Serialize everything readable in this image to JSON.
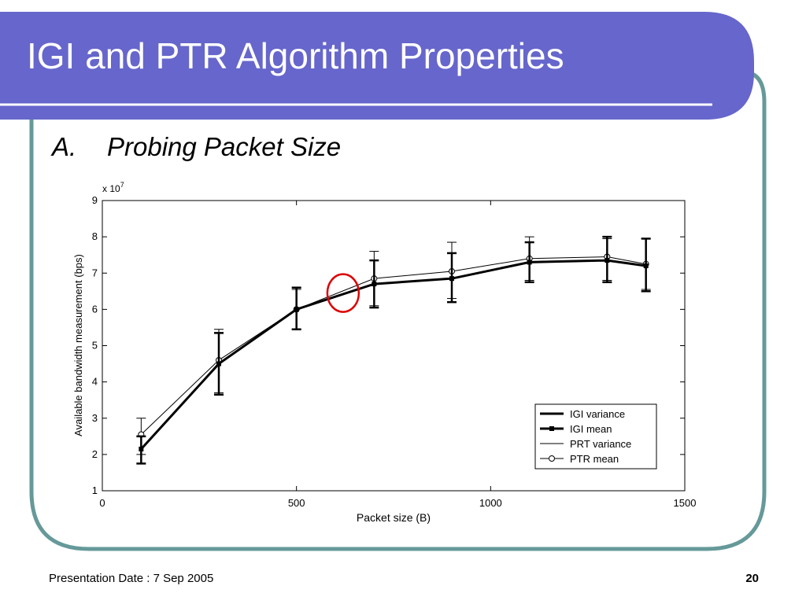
{
  "slide": {
    "title": "IGI and PTR Algorithm Properties",
    "subtitle_number": "A.",
    "subtitle_text": "Probing Packet Size",
    "footer_date": "Presentation Date : 7 Sep 2005",
    "page_number": "20",
    "colors": {
      "header": "#6666cc",
      "border": "#669999",
      "highlight_circle": "#dd0000"
    }
  },
  "chart_data": {
    "type": "line",
    "title": "",
    "xlabel": "Packet size (B)",
    "ylabel": "Available bandwidth measurement (bps)",
    "y_multiplier": "x 10",
    "y_multiplier_exponent": "7",
    "xlim": [
      0,
      1500
    ],
    "ylim": [
      1,
      9
    ],
    "xticks": [
      "0",
      "500",
      "1000",
      "1500"
    ],
    "xtick_values": [
      0,
      500,
      1000,
      1500
    ],
    "yticks": [
      "1",
      "2",
      "3",
      "4",
      "5",
      "6",
      "7",
      "8",
      "9"
    ],
    "ytick_values": [
      1,
      2,
      3,
      4,
      5,
      6,
      7,
      8,
      9
    ],
    "grid": false,
    "legend_position": "bottom-right",
    "legend": [
      "IGI variance",
      "IGI mean",
      "PRT variance",
      "PTR mean"
    ],
    "x": [
      100,
      300,
      500,
      700,
      900,
      1100,
      1300,
      1400
    ],
    "series": [
      {
        "name": "IGI mean",
        "values": [
          2.15,
          4.5,
          6.0,
          6.7,
          6.85,
          7.3,
          7.35,
          7.2
        ],
        "err_low": [
          1.75,
          3.65,
          5.45,
          6.05,
          6.2,
          6.75,
          6.75,
          6.5
        ],
        "err_high": [
          2.5,
          5.35,
          6.6,
          7.35,
          7.55,
          7.85,
          8.0,
          7.95
        ]
      },
      {
        "name": "PTR mean",
        "values": [
          2.55,
          4.6,
          6.0,
          6.85,
          7.05,
          7.4,
          7.45,
          7.25
        ],
        "err_low": [
          2.0,
          3.7,
          5.45,
          6.1,
          6.3,
          6.8,
          6.8,
          6.55
        ],
        "err_high": [
          3.0,
          5.45,
          6.55,
          7.6,
          7.85,
          8.0,
          7.95,
          7.95
        ]
      }
    ],
    "annotation": {
      "type": "circle",
      "x": 620,
      "y": 6.45
    }
  }
}
